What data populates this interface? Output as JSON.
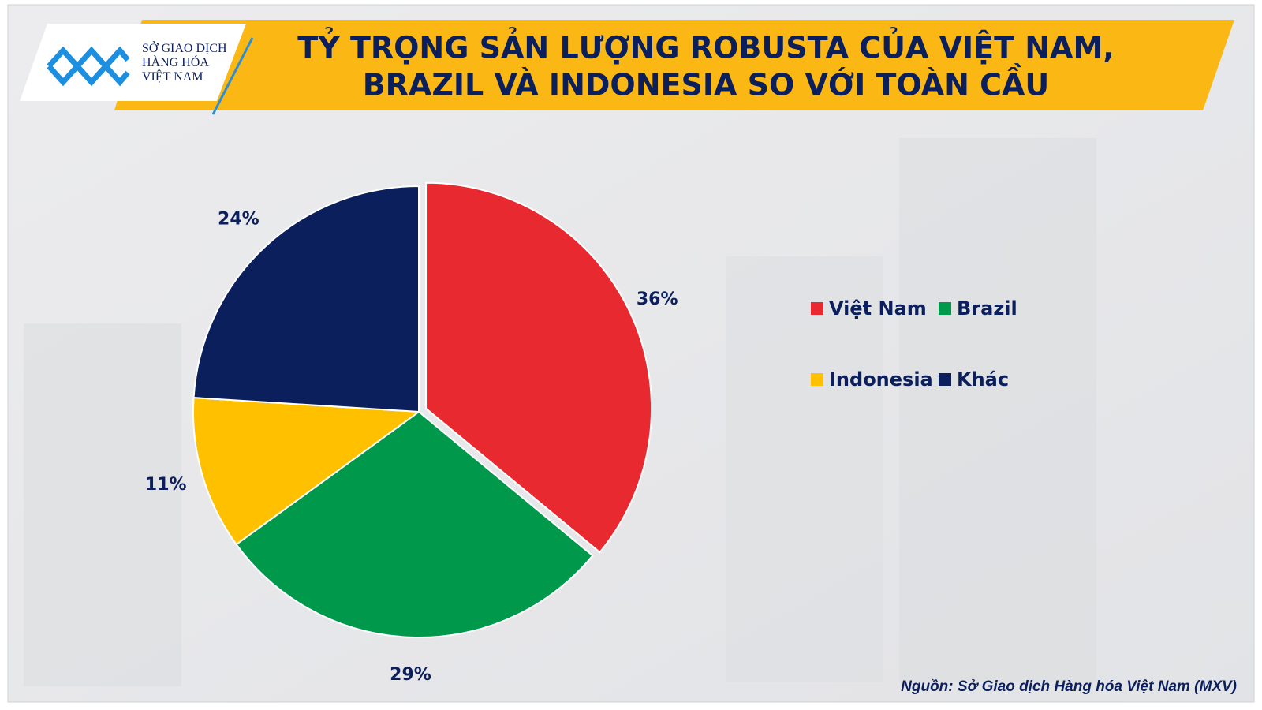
{
  "logo": {
    "lines": [
      "SỞ GIAO DỊCH",
      "HÀNG HÓA",
      "VIỆT NAM"
    ]
  },
  "chart_data": {
    "type": "pie",
    "title": [
      "TỶ TRỌNG SẢN LƯỢNG ROBUSTA CỦA VIỆT NAM,",
      "BRAZIL VÀ INDONESIA SO VỚI TOÀN CẦU"
    ],
    "categories": [
      "Việt Nam",
      "Brazil",
      "Indonesia",
      "Khác"
    ],
    "values": [
      36,
      29,
      11,
      24
    ],
    "value_labels": [
      "36%",
      "29%",
      "11%",
      "24%"
    ],
    "colors": [
      "#e8292f",
      "#00994c",
      "#ffc000",
      "#0b1f5c"
    ],
    "exploded": [
      true,
      false,
      false,
      false
    ],
    "legend": "right"
  },
  "source": "Nguồn: Sở Giao dịch Hàng hóa Việt Nam (MXV)"
}
